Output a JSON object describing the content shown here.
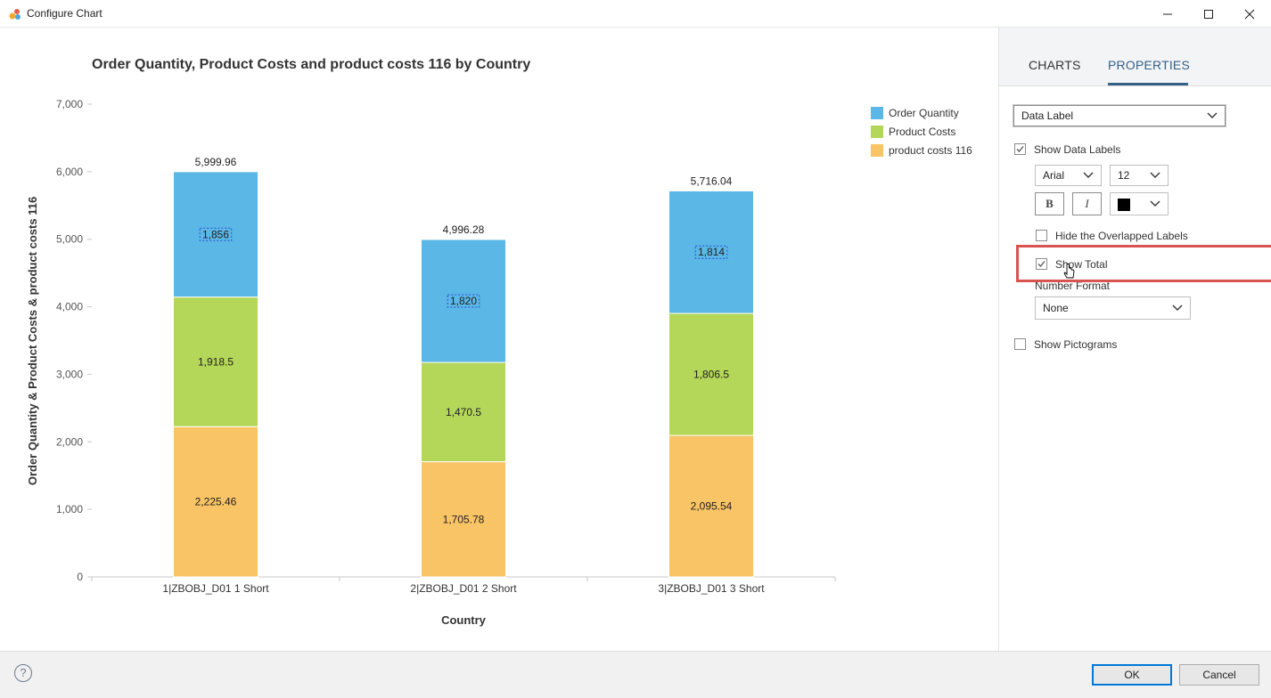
{
  "window": {
    "title": "Configure Chart"
  },
  "tabs": [
    {
      "label": "CHARTS"
    },
    {
      "label": "PROPERTIES"
    }
  ],
  "properties": {
    "section_select": "Data Label",
    "show_data_labels": {
      "label": "Show Data Labels",
      "checked": true
    },
    "font_family": "Arial",
    "font_size": "12",
    "bold_label": "B",
    "italic_label": "I",
    "font_color": "#000000",
    "hide_overlapped": {
      "label": "Hide the Overlapped Labels",
      "checked": false
    },
    "show_total": {
      "label": "Show Total",
      "checked": true
    },
    "number_format_label": "Number Format",
    "number_format_value": "None",
    "show_pictograms": {
      "label": "Show Pictograms",
      "checked": false
    }
  },
  "footer": {
    "help_label": "?",
    "ok_label": "OK",
    "cancel_label": "Cancel"
  },
  "colors": {
    "order_quantity": "#5bb7e6",
    "product_costs": "#b4d659",
    "product_costs_116": "#f9c465",
    "accent": "#346187",
    "highlight": "#d9534f"
  },
  "chart_data": {
    "type": "bar",
    "stacked": true,
    "title": "Order Quantity, Product Costs and product costs 116 by Country",
    "xlabel": "Country",
    "ylabel": "Order Quantity & Product Costs & product costs 116",
    "ylim": [
      0,
      7000
    ],
    "yticks": [
      "0",
      "1,000",
      "2,000",
      "3,000",
      "4,000",
      "5,000",
      "6,000",
      "7,000"
    ],
    "categories": [
      "1|ZBOBJ_D01 1 Short",
      "2|ZBOBJ_D01 2 Short",
      "3|ZBOBJ_D01 3 Short"
    ],
    "series": [
      {
        "name": "product costs 116",
        "values": [
          2225.46,
          1705.78,
          2095.54
        ],
        "labels": [
          "2,225.46",
          "1,705.78",
          "2,095.54"
        ]
      },
      {
        "name": "Product Costs",
        "values": [
          1918.5,
          1470.5,
          1806.5
        ],
        "labels": [
          "1,918.5",
          "1,470.5",
          "1,806.5"
        ]
      },
      {
        "name": "Order Quantity",
        "values": [
          1856,
          1820,
          1814
        ],
        "labels": [
          "1,856",
          "1,820",
          "1,814"
        ]
      }
    ],
    "totals": [
      "5,999.96",
      "4,996.28",
      "5,716.04"
    ],
    "legend": [
      "Order Quantity",
      "Product Costs",
      "product costs 116"
    ],
    "legend_position": "top-right",
    "grid": false
  }
}
